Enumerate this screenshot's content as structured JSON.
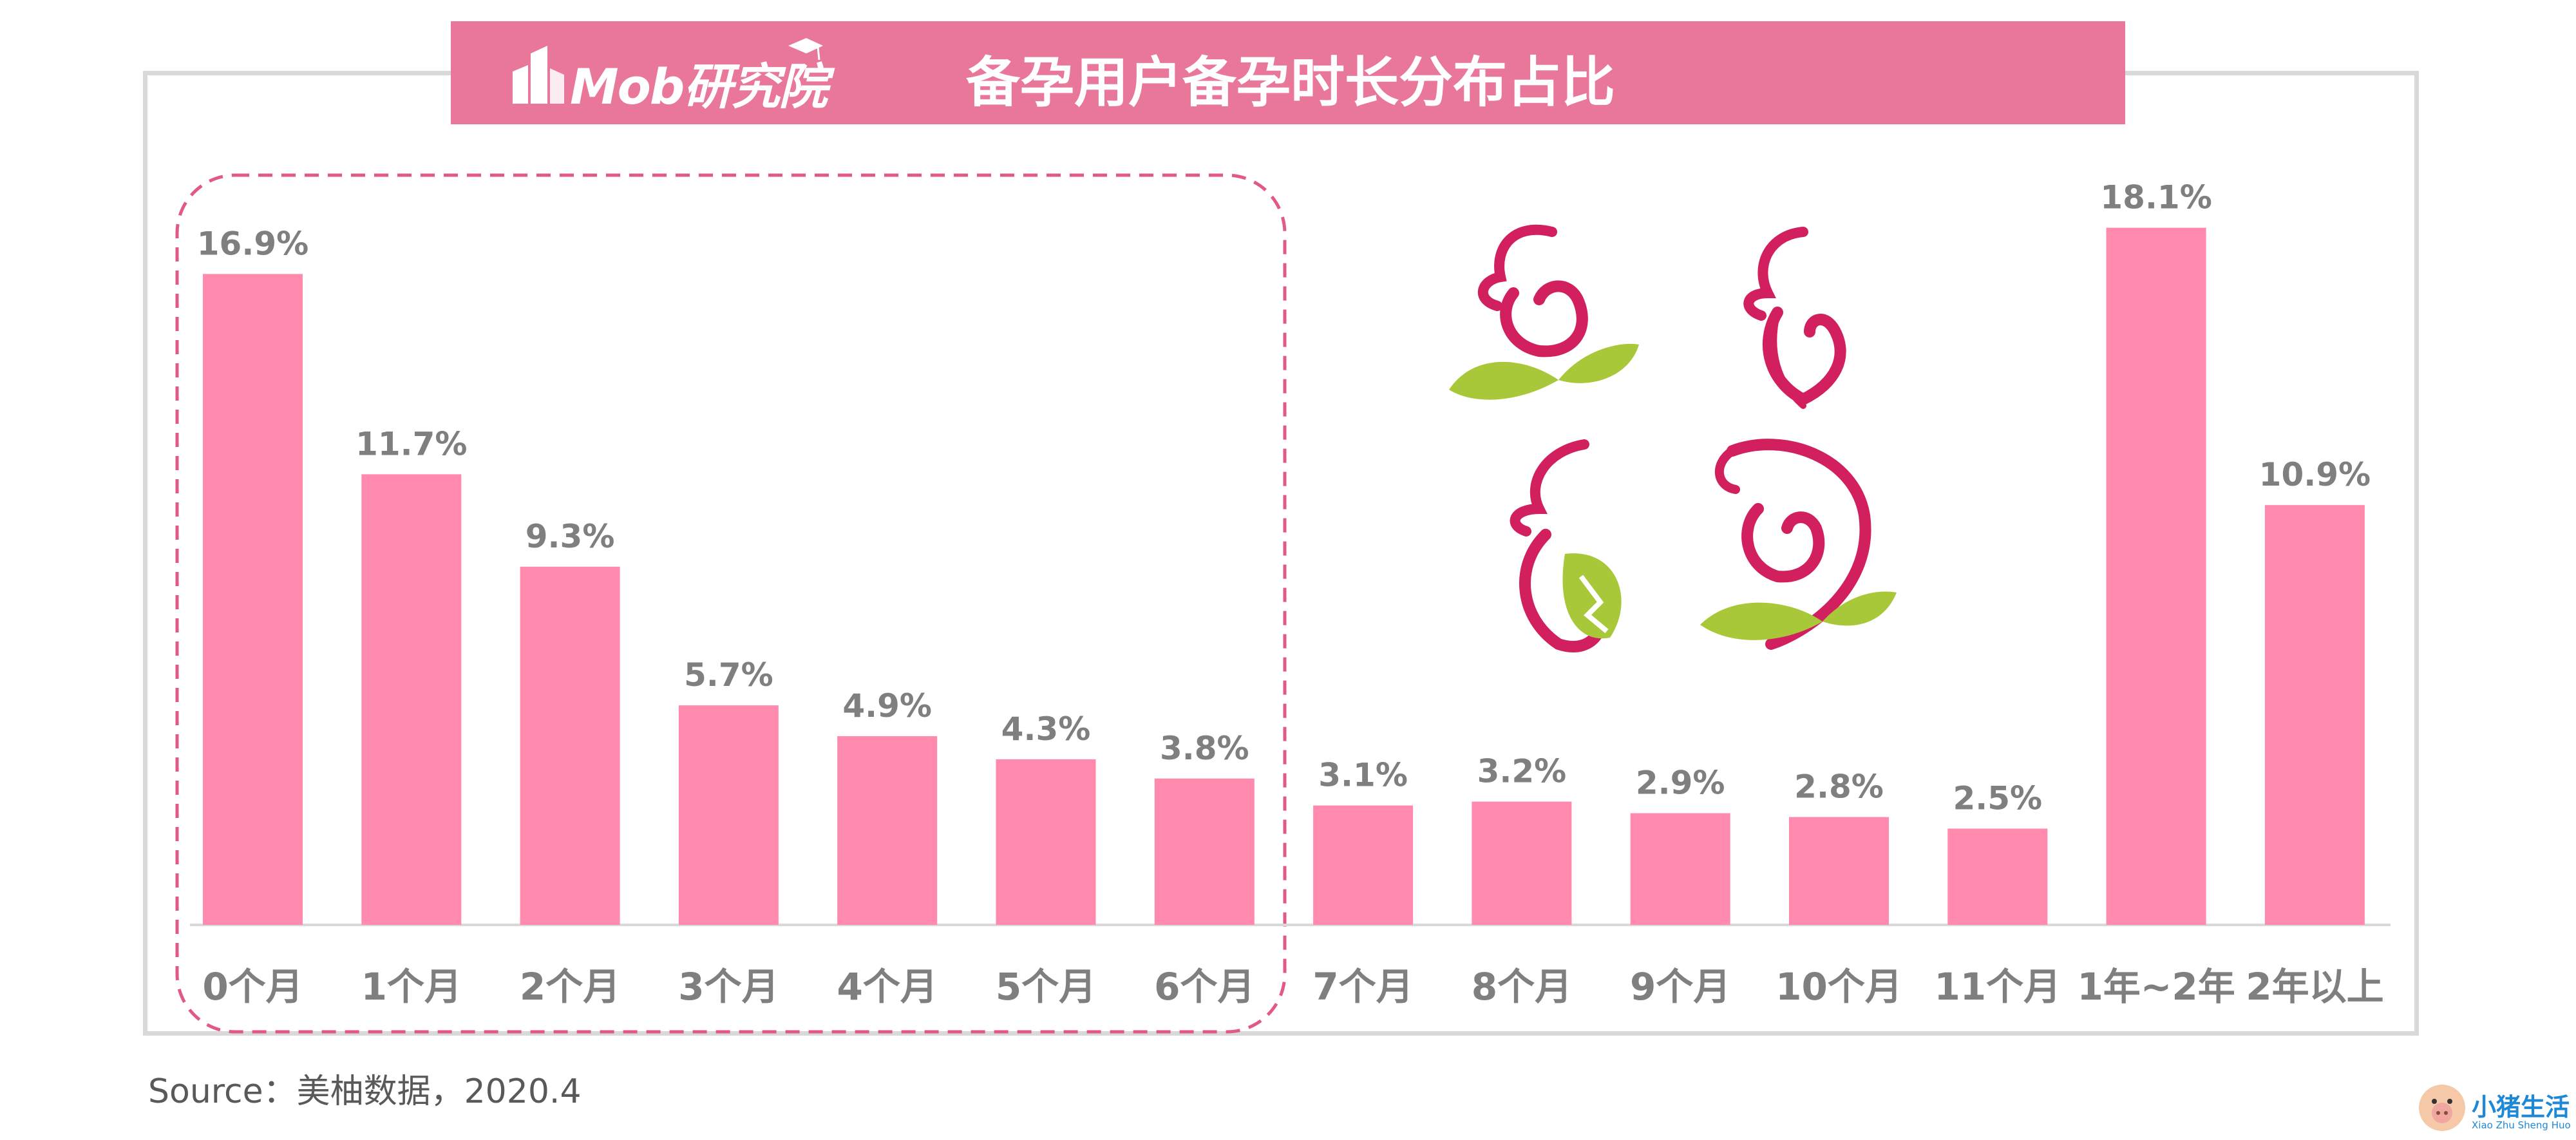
{
  "header": {
    "logo_text": "Mob研究院",
    "title": "备孕用户备孕时长分布占比"
  },
  "colors": {
    "bar": "#ff8aae",
    "title_band": "#e8779a",
    "highlight_box": "#e05a84",
    "label": "#7f7f7f",
    "axis": "#d9d9d9",
    "decor_magenta": "#d2205f",
    "decor_green": "#a8c83a"
  },
  "chart_data": {
    "type": "bar",
    "title": "备孕用户备孕时长分布占比",
    "categories": [
      "0个月",
      "1个月",
      "2个月",
      "3个月",
      "4个月",
      "5个月",
      "6个月",
      "7个月",
      "8个月",
      "9个月",
      "10个月",
      "11个月",
      "1年~2年",
      "2年以上"
    ],
    "values": [
      16.9,
      11.7,
      9.3,
      5.7,
      4.9,
      4.3,
      3.8,
      3.1,
      3.2,
      2.9,
      2.8,
      2.5,
      18.1,
      10.9
    ],
    "value_labels": [
      "16.9%",
      "11.7%",
      "9.3%",
      "5.7%",
      "4.9%",
      "4.3%",
      "3.8%",
      "3.1%",
      "3.2%",
      "2.9%",
      "2.8%",
      "2.5%",
      "18.1%",
      "10.9%"
    ],
    "unit": "%",
    "highlight_range": [
      "0个月",
      "6个月"
    ],
    "ylim": [
      0,
      20
    ],
    "grid": false,
    "legend": "none"
  },
  "footer": {
    "source": "Source：美柚数据，2020.4"
  },
  "watermark": {
    "text": "小猪生活",
    "subtext": "Xiao Zhu Sheng Huo"
  },
  "decoration": {
    "icons": [
      "mother-baby-leaf-icon",
      "pregnant-silhouette-icon",
      "pregnant-leaf-icon",
      "mother-baby-heart-icon"
    ]
  }
}
